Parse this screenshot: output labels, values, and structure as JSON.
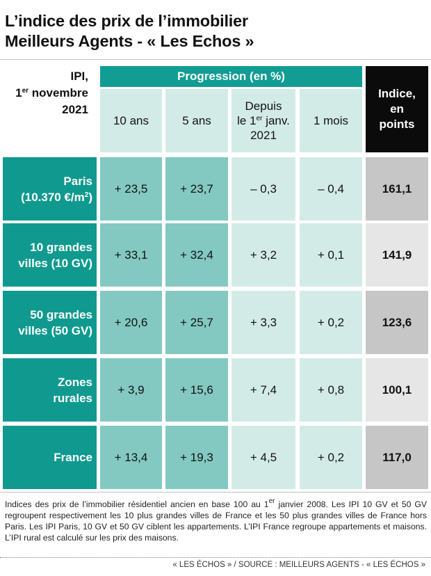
{
  "title": {
    "line1": "L’indice des prix de l’immobilier",
    "line2": "Meilleurs Agents - « Les Echos »"
  },
  "ipi_label": {
    "line1": "IPI,",
    "line2_pre": "1",
    "line2_sup": "er",
    "line2_post": " novembre",
    "line3": "2021"
  },
  "progression_header": "Progression (en %)",
  "columns": {
    "c10": "10 ans",
    "c5": "5 ans",
    "depuis_l1": "Depuis",
    "depuis_l2_pre": "le 1",
    "depuis_l2_sup": "er",
    "depuis_l2_post": " janv.",
    "depuis_l3": "2021",
    "c1m": "1 mois",
    "indice_l1": "Indice,",
    "indice_l2": "en",
    "indice_l3": "points"
  },
  "rows": [
    {
      "label_l1": "Paris",
      "label_l2_pre": "(10.370 €/m",
      "label_l2_sup": "2",
      "label_l2_post": ")",
      "v10": "+ 23,5",
      "v5": "+ 23,7",
      "vdep": "– 0,3",
      "v1m": "– 0,4",
      "indice": "161,1"
    },
    {
      "label_l1": "10 grandes",
      "label_l2_pre": "villes (10 GV)",
      "label_l2_sup": "",
      "label_l2_post": "",
      "v10": "+ 33,1",
      "v5": "+ 32,4",
      "vdep": "+ 3,2",
      "v1m": "+ 0,1",
      "indice": "141,9"
    },
    {
      "label_l1": "50 grandes",
      "label_l2_pre": "villes (50 GV)",
      "label_l2_sup": "",
      "label_l2_post": "",
      "v10": "+ 20,6",
      "v5": "+ 25,7",
      "vdep": "+ 3,3",
      "v1m": "+ 0,2",
      "indice": "123,6"
    },
    {
      "label_l1": "Zones",
      "label_l2_pre": "rurales",
      "label_l2_sup": "",
      "label_l2_post": "",
      "v10": "+ 3,9",
      "v5": "+ 15,6",
      "vdep": "+ 7,4",
      "v1m": "+ 0,8",
      "indice": "100,1"
    },
    {
      "label_l1": "France",
      "label_l2_pre": "",
      "label_l2_sup": "",
      "label_l2_post": "",
      "v10": "+ 13,4",
      "v5": "+ 19,3",
      "vdep": "+ 4,5",
      "v1m": "+ 0,2",
      "indice": "117,0"
    }
  ],
  "footnote": {
    "pre": "Indices des prix de l’immobilier résidentiel ancien en base 100 au 1",
    "sup": "er",
    "post": " janvier 2008. Les IPI 10 GV et 50 GV regroupent respectivement les 10 plus grandes villes de France et les 50 plus grandes villes de France hors Paris. Les IPI Paris, 10 GV et 50 GV ciblent les appartements. L’IPI France regroupe appartements et maisons. L’IPI rural est calculé sur les prix des maisons."
  },
  "source": "« LES ÉCHOS » / SOURCE : MEILLEURS AGENTS - « LES ÉCHOS »",
  "colors": {
    "teal_dark": "#109a8f",
    "teal_header": "#119d93",
    "teal_mid": "#83c9c2",
    "teal_light": "#d3ebe7",
    "index_dark": "#c6c6c6",
    "index_light": "#e6e6e6",
    "header_black": "#0b0b0b"
  },
  "chart_data": {
    "type": "table",
    "title": "L’indice des prix de l’immobilier Meilleurs Agents - « Les Echos »",
    "columns": [
      "10 ans",
      "5 ans",
      "Depuis le 1er janv. 2021",
      "1 mois",
      "Indice, en points"
    ],
    "rows": [
      "Paris (10.370 €/m2)",
      "10 grandes villes (10 GV)",
      "50 grandes villes (50 GV)",
      "Zones rurales",
      "France"
    ],
    "series": [
      {
        "name": "10 ans",
        "values": [
          23.5,
          33.1,
          20.6,
          3.9,
          13.4
        ]
      },
      {
        "name": "5 ans",
        "values": [
          23.7,
          32.4,
          25.7,
          15.6,
          19.3
        ]
      },
      {
        "name": "Depuis le 1er janv. 2021",
        "values": [
          -0.3,
          3.2,
          3.3,
          7.4,
          4.5
        ]
      },
      {
        "name": "1 mois",
        "values": [
          -0.4,
          0.1,
          0.2,
          0.8,
          0.2
        ]
      },
      {
        "name": "Indice, en points",
        "values": [
          161.1,
          141.9,
          123.6,
          100.1,
          117.0
        ]
      }
    ]
  }
}
